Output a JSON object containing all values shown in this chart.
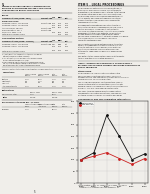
{
  "bg_color": "#f0eeea",
  "text_color": "#222222",
  "page_bg": "#e8e6e2",
  "chart_title": "Comparison of Five Year Cumulative Total Return*",
  "chart_years": [
    1998,
    1999,
    2000,
    2001,
    2002,
    2003
  ],
  "line1_values": [
    100,
    130,
    290,
    200,
    100,
    125
  ],
  "line2_values": [
    100,
    115,
    130,
    105,
    80,
    105
  ],
  "line1_color": "#111111",
  "line2_color": "#cc2222",
  "line1_label": "SEACOR SMIT",
  "line2_label": "S&P 500 Index",
  "chart_ylim": [
    0,
    350
  ],
  "chart_yticks": [
    0,
    50,
    100,
    150,
    200,
    250,
    300,
    350
  ],
  "footnote": "* $100 invested on Dec. 31, 1998 in stock or index — including reinvestment of dividends. Fiscal year ended Dec. 31."
}
